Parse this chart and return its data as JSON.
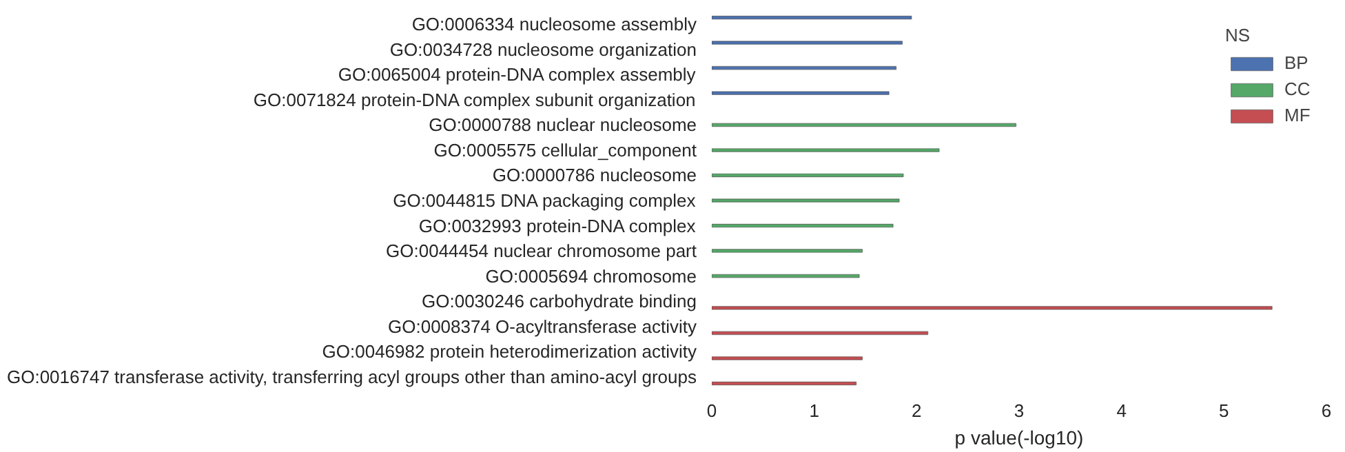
{
  "chart_data": {
    "type": "bar",
    "orientation": "horizontal",
    "xlabel": "p value(-log10)",
    "legend_title": "NS",
    "legend": "top right",
    "grid": false,
    "categories": [
      "GO:0006334 nucleosome assembly",
      "GO:0034728 nucleosome organization",
      "GO:0065004 protein-DNA complex assembly",
      "GO:0071824 protein-DNA complex subunit organization",
      "GO:0000788 nuclear nucleosome",
      "GO:0005575 cellular_component",
      "GO:0000786 nucleosome",
      "GO:0044815 DNA packaging complex",
      "GO:0032993 protein-DNA complex",
      "GO:0044454 nuclear chromosome part",
      "GO:0005694 chromosome",
      "GO:0030246 carbohydrate binding",
      "GO:0008374 O-acyltransferase activity",
      "GO:0046982 protein heterodimerization activity",
      "GO:0016747 transferase activity, transferring acyl groups other than amino-acyl groups"
    ],
    "series": [
      {
        "name": "BP",
        "color": "#4c72b0",
        "values": [
          1.95,
          1.86,
          1.8,
          1.73,
          null,
          null,
          null,
          null,
          null,
          null,
          null,
          null,
          null,
          null,
          null
        ]
      },
      {
        "name": "CC",
        "color": "#55a868",
        "values": [
          null,
          null,
          null,
          null,
          2.97,
          2.22,
          1.87,
          1.83,
          1.77,
          1.47,
          1.44,
          null,
          null,
          null,
          null
        ]
      },
      {
        "name": "MF",
        "color": "#c44e52",
        "values": [
          null,
          null,
          null,
          null,
          null,
          null,
          null,
          null,
          null,
          null,
          null,
          5.47,
          2.11,
          1.47,
          1.41
        ]
      }
    ],
    "xlim": [
      0,
      6
    ],
    "xticks": [
      0,
      1,
      2,
      3,
      4,
      5,
      6
    ]
  }
}
